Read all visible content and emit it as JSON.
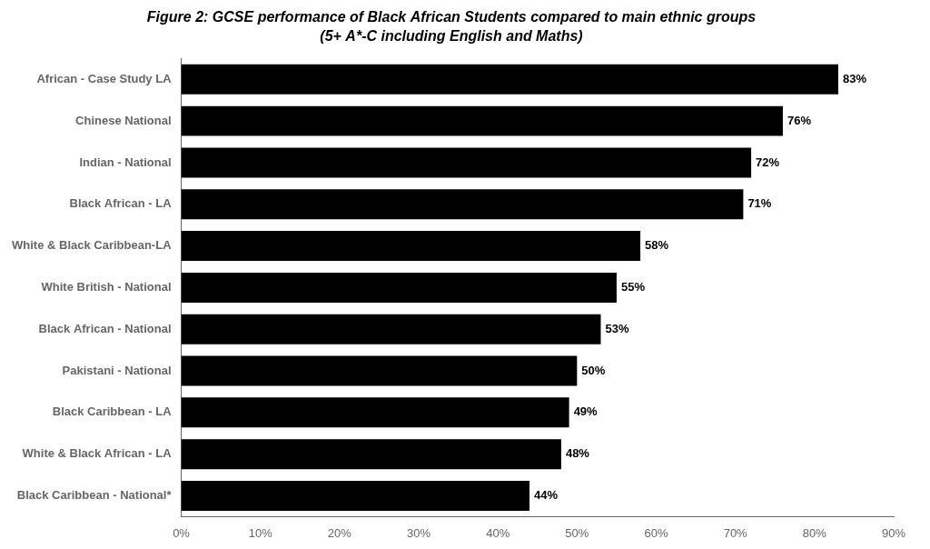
{
  "chart_data": {
    "type": "bar",
    "orientation": "horizontal",
    "title": "Figure 2: GCSE performance of Black African Students compared to main ethnic groups",
    "subtitle": "(5+ A*-C including English and Maths)",
    "categories": [
      "Black Caribbean - National*",
      "White & Black African - LA",
      "Black Caribbean - LA",
      "Pakistani - National",
      "Black African - National",
      "White British - National",
      "White & Black Caribbean-LA",
      "Black African - LA",
      "Indian - National",
      "Chinese National",
      "African - Case Study LA"
    ],
    "values": [
      44,
      48,
      49,
      50,
      53,
      55,
      58,
      71,
      72,
      76,
      83
    ],
    "value_labels": [
      "44%",
      "48%",
      "49%",
      "50%",
      "53%",
      "55%",
      "58%",
      "71%",
      "72%",
      "76%",
      "83%"
    ],
    "color": "#000000",
    "xlim": [
      0,
      90
    ],
    "xticks": [
      {
        "value": 0,
        "label": "0%"
      },
      {
        "value": 10,
        "label": "10%"
      },
      {
        "value": 20,
        "label": "20%"
      },
      {
        "value": 30,
        "label": "30%"
      },
      {
        "value": 40,
        "label": "40%"
      },
      {
        "value": 50,
        "label": "50%"
      },
      {
        "value": 60,
        "label": "60%"
      },
      {
        "value": 70,
        "label": "70%"
      },
      {
        "value": 80,
        "label": "80%"
      },
      {
        "value": 90,
        "label": "90%"
      }
    ],
    "grid": false,
    "data_labels": true
  }
}
